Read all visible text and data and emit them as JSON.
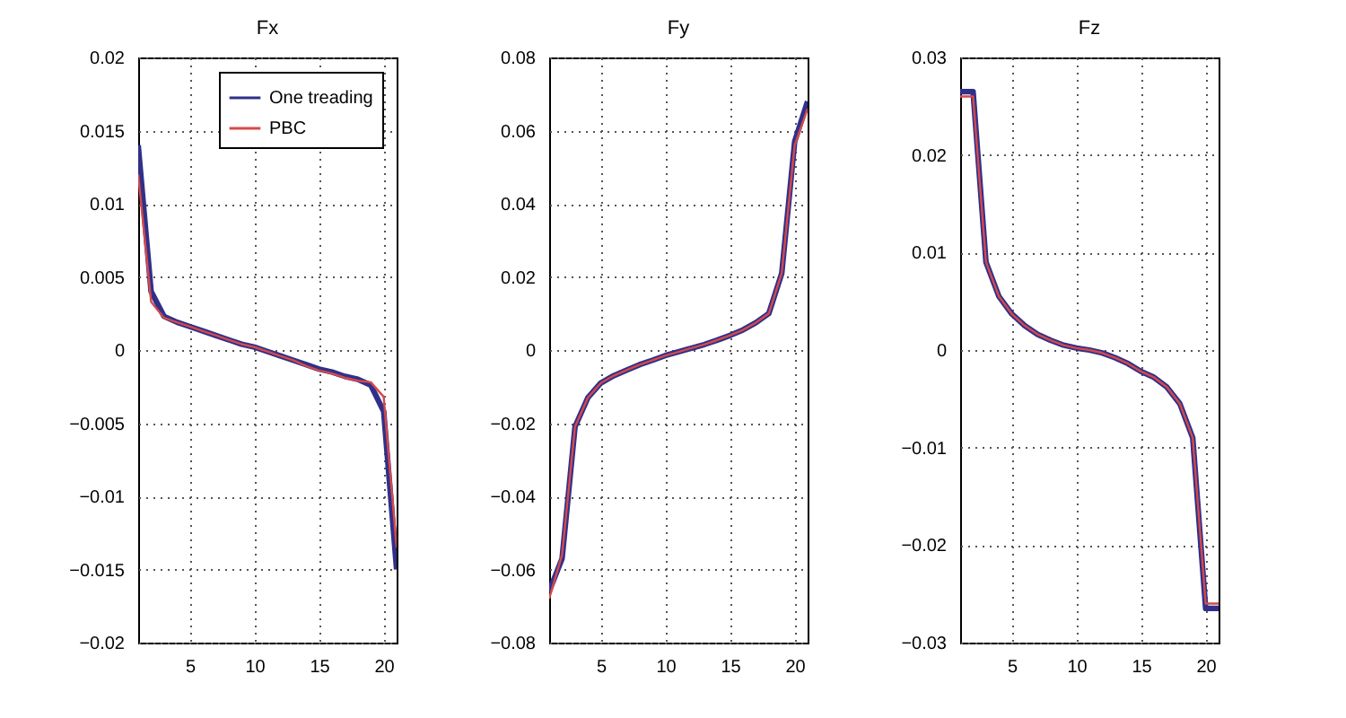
{
  "chart_data": [
    {
      "type": "line",
      "title": "Fx",
      "x": [
        1,
        2,
        3,
        4,
        5,
        6,
        7,
        8,
        9,
        10,
        11,
        12,
        13,
        14,
        15,
        16,
        17,
        18,
        19,
        20,
        21
      ],
      "xlim": [
        1,
        21
      ],
      "xticks": [
        5,
        10,
        15,
        20
      ],
      "ylim": [
        -0.02,
        0.02
      ],
      "yticks": [
        -0.02,
        -0.015,
        -0.01,
        -0.005,
        0,
        0.005,
        0.01,
        0.015,
        0.02
      ],
      "grid": true,
      "legend": "top right",
      "line_style": "solid",
      "series": [
        {
          "name": "One treading",
          "color": "#30308a",
          "values": [
            0.014,
            0.004,
            0.0023,
            0.0019,
            0.0016,
            0.0013,
            0.001,
            0.0007,
            0.0004,
            0.0002,
            -0.0001,
            -0.0004,
            -0.0007,
            -0.001,
            -0.0013,
            -0.0015,
            -0.0018,
            -0.002,
            -0.0024,
            -0.0042,
            -0.015
          ]
        },
        {
          "name": "PBC",
          "color": "#d44a4a",
          "values": [
            0.012,
            0.0033,
            0.0022,
            0.0019,
            0.0016,
            0.0013,
            0.001,
            0.0007,
            0.0004,
            0.0002,
            -0.0001,
            -0.0004,
            -0.0007,
            -0.0011,
            -0.0014,
            -0.0016,
            -0.0019,
            -0.0021,
            -0.0022,
            -0.0032,
            -0.0135
          ]
        }
      ]
    },
    {
      "type": "line",
      "title": "Fy",
      "x": [
        1,
        2,
        3,
        4,
        5,
        6,
        7,
        8,
        9,
        10,
        11,
        12,
        13,
        14,
        15,
        16,
        17,
        18,
        19,
        20,
        21
      ],
      "xlim": [
        1,
        21
      ],
      "xticks": [
        5,
        10,
        15,
        20
      ],
      "ylim": [
        -0.08,
        0.08
      ],
      "yticks": [
        -0.08,
        -0.06,
        -0.04,
        -0.02,
        0,
        0.02,
        0.04,
        0.06,
        0.08
      ],
      "grid": true,
      "line_style": "solid",
      "series": [
        {
          "color": "#30308a",
          "values": [
            -0.066,
            -0.057,
            -0.021,
            -0.013,
            -0.009,
            -0.007,
            -0.0055,
            -0.004,
            -0.0028,
            -0.0015,
            -0.0005,
            0.0005,
            0.0015,
            0.0027,
            0.004,
            0.0055,
            0.0075,
            0.01,
            0.021,
            0.057,
            0.068
          ]
        },
        {
          "color": "#d44a4a",
          "values": [
            -0.068,
            -0.056,
            -0.021,
            -0.013,
            -0.009,
            -0.007,
            -0.0055,
            -0.004,
            -0.0028,
            -0.0015,
            -0.0005,
            0.0005,
            0.0015,
            0.0027,
            0.004,
            0.0055,
            0.0075,
            0.01,
            0.021,
            0.056,
            0.066
          ]
        }
      ]
    },
    {
      "type": "line",
      "title": "Fz",
      "x": [
        1,
        2,
        3,
        4,
        5,
        6,
        7,
        8,
        9,
        10,
        11,
        12,
        13,
        14,
        15,
        16,
        17,
        18,
        19,
        20,
        21
      ],
      "xlim": [
        1,
        21
      ],
      "xticks": [
        5,
        10,
        15,
        20
      ],
      "ylim": [
        -0.03,
        0.03
      ],
      "yticks": [
        -0.03,
        -0.02,
        -0.01,
        0,
        0.01,
        0.02,
        0.03
      ],
      "grid": true,
      "line_style": "solid",
      "series": [
        {
          "color": "#30308a",
          "values": [
            0.0265,
            0.0265,
            0.009,
            0.0055,
            0.0037,
            0.0025,
            0.0016,
            0.001,
            0.0005,
            0.0002,
            0,
            -0.0003,
            -0.0008,
            -0.0014,
            -0.0022,
            -0.0028,
            -0.0038,
            -0.0055,
            -0.009,
            -0.0265,
            -0.0265
          ]
        },
        {
          "color": "#d44a4a",
          "values": [
            0.026,
            0.026,
            0.009,
            0.0055,
            0.0037,
            0.0025,
            0.0016,
            0.001,
            0.0005,
            0.0002,
            0,
            -0.0003,
            -0.0008,
            -0.0014,
            -0.0022,
            -0.0028,
            -0.0038,
            -0.0055,
            -0.009,
            -0.026,
            -0.026
          ]
        }
      ]
    }
  ]
}
